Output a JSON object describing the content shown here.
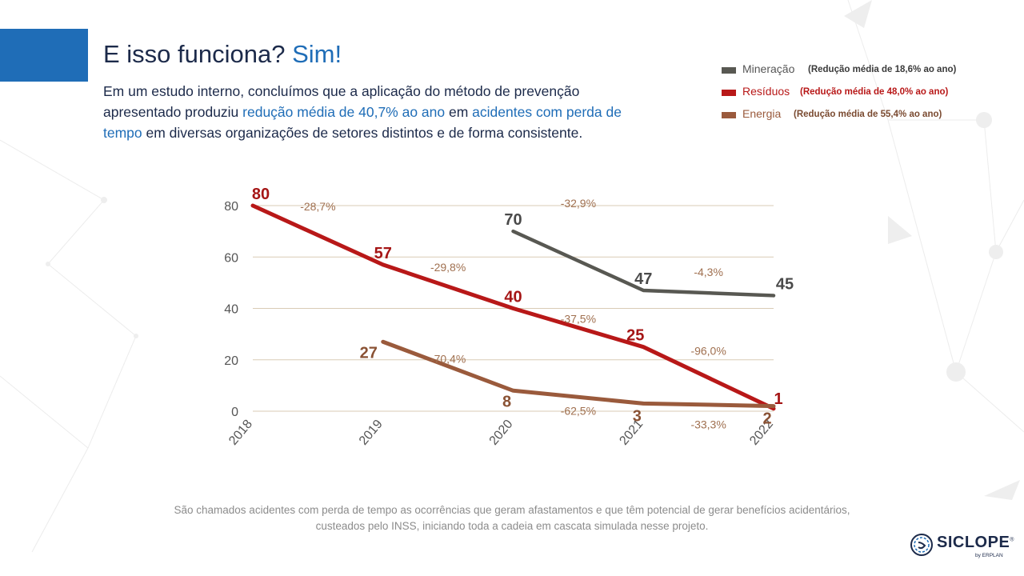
{
  "slide": {
    "title_main": "E isso funciona?",
    "title_highlight": "Sim!",
    "intro": {
      "part1": "Em um estudo interno, concluímos que a aplicação do método de prevenção apresentado produziu ",
      "highlight1": "redução média de 40,7% ao ano",
      "part2": " em ",
      "highlight2": "acidentes com perda de tempo",
      "part3": " em diversas organizações de setores distintos e de forma consistente."
    },
    "footnote_line1": "São chamados acidentes com perda de tempo as ocorrências que geram afastamentos e que têm potencial de gerar benefícios acidentários,",
    "footnote_line2": "custeados pelo INSS, iniciando toda a cadeia em cascata simulada nesse projeto.",
    "logo": {
      "name": "SICLOPE",
      "registered": "®",
      "sub": "by ERPLAN"
    },
    "colors": {
      "accent_blue": "#1f6db7",
      "dark_text": "#1c2a4a",
      "grid": "#d9cbb5",
      "axis_text": "#555555"
    }
  },
  "legend": [
    {
      "name": "Mineração",
      "note": "(Redução média de 18,6% ao ano)",
      "color": "#585852",
      "text_color": "#555555",
      "note_color": "#3a3a3a"
    },
    {
      "name": "Resíduos",
      "note": "(Redução média de 48,0% ao ano)",
      "color": "#b81818",
      "text_color": "#b81818",
      "note_color": "#b81818"
    },
    {
      "name": "Energia",
      "note": "(Redução média de 55,4% ao ano)",
      "color": "#9a5a3c",
      "text_color": "#9a5a3c",
      "note_color": "#7a4a30"
    }
  ],
  "chart_data": {
    "type": "line",
    "x": [
      "2018",
      "2019",
      "2020",
      "2021",
      "2022"
    ],
    "ylim": [
      0,
      80
    ],
    "yticks": [
      0,
      20,
      40,
      60,
      80
    ],
    "grid": true,
    "legend_position": "top-right",
    "series": [
      {
        "name": "Mineração",
        "color": "#585852",
        "label_color": "#4a4a4a",
        "values": [
          null,
          null,
          70,
          47,
          45
        ],
        "labels": [
          "",
          "",
          "70",
          "47",
          "45"
        ],
        "changes": [
          "-32,9%",
          "-4,3%"
        ]
      },
      {
        "name": "Resíduos",
        "color": "#b81818",
        "label_color": "#a51515",
        "values": [
          80,
          57,
          40,
          25,
          1
        ],
        "labels": [
          "80",
          "57",
          "40",
          "25",
          "1"
        ],
        "changes": [
          "-28,7%",
          "-29,8%",
          "-37,5%",
          "-96,0%"
        ]
      },
      {
        "name": "Energia",
        "color": "#9a5a3c",
        "label_color": "#8a5234",
        "values": [
          null,
          27,
          8,
          3,
          2
        ],
        "labels": [
          "",
          "27",
          "8",
          "3",
          "2"
        ],
        "changes": [
          "-70,4%",
          "-62,5%",
          "-33,3%"
        ]
      }
    ],
    "change_label_color": "#a07050"
  }
}
